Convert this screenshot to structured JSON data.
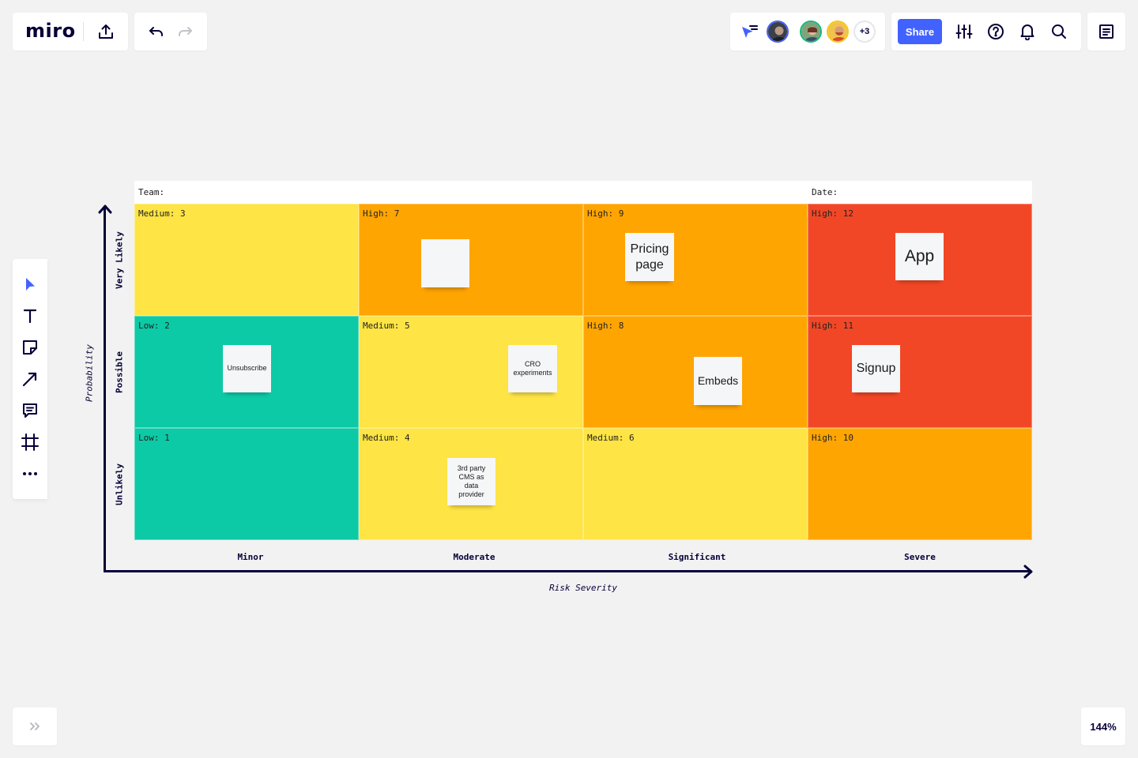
{
  "app": {
    "logo": "miro",
    "zoom": "144%"
  },
  "toolbar": {
    "share_label": "Share",
    "more_collaborators": "+3",
    "colors": {
      "accent": "#4262ff",
      "ink": "#050038"
    }
  },
  "tools": [
    {
      "name": "select-tool",
      "icon": "cursor-icon"
    },
    {
      "name": "text-tool",
      "icon": "text-icon"
    },
    {
      "name": "sticky-note-tool",
      "icon": "sticky-note-icon"
    },
    {
      "name": "connection-line-tool",
      "icon": "arrow-icon"
    },
    {
      "name": "comment-tool",
      "icon": "comment-icon"
    },
    {
      "name": "frame-tool",
      "icon": "frame-icon"
    },
    {
      "name": "more-tools",
      "icon": "more-icon"
    }
  ],
  "board": {
    "team_label": "Team:",
    "date_label": "Date:",
    "y_axis_title": "Probability",
    "x_axis_title": "Risk Severity",
    "rows": [
      "Very Likely",
      "Possible",
      "Unlikely"
    ],
    "columns": [
      "Minor",
      "Moderate",
      "Significant",
      "Severe"
    ],
    "colors": {
      "low": "#0ccaa6",
      "medium": "#fee444",
      "high": "#ffa502",
      "critical": "#f24726"
    },
    "cells": [
      {
        "label": "Medium: 3",
        "level": "medium"
      },
      {
        "label": "High: 7",
        "level": "high"
      },
      {
        "label": "High: 9",
        "level": "high"
      },
      {
        "label": "High: 12",
        "level": "critical"
      },
      {
        "label": "Low: 2",
        "level": "low"
      },
      {
        "label": "Medium: 5",
        "level": "medium"
      },
      {
        "label": "High: 8",
        "level": "high"
      },
      {
        "label": "High: 11",
        "level": "critical"
      },
      {
        "label": "Low: 1",
        "level": "low"
      },
      {
        "label": "Medium: 4",
        "level": "medium"
      },
      {
        "label": "Medium: 6",
        "level": "medium"
      },
      {
        "label": "High: 10",
        "level": "high"
      }
    ],
    "stickies": [
      {
        "text": ""
      },
      {
        "text": "Pricing page"
      },
      {
        "text": "App"
      },
      {
        "text": "Unsubscribe"
      },
      {
        "text": "CRO experiments"
      },
      {
        "text": "Embeds"
      },
      {
        "text": "Signup"
      },
      {
        "text": "3rd party CMS as data provider"
      }
    ]
  }
}
